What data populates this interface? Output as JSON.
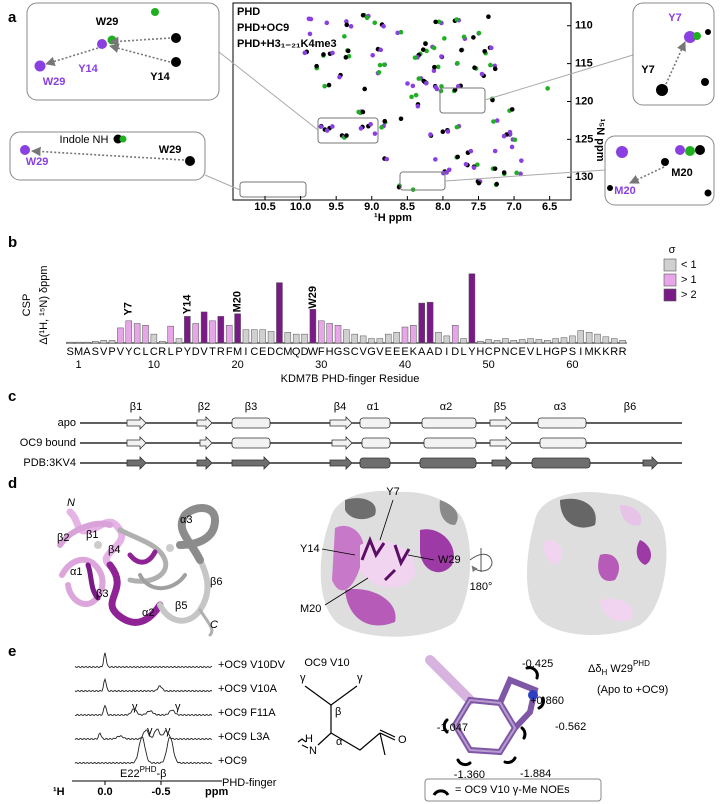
{
  "panel_a": {
    "type": "scatter",
    "label": "a",
    "legend": [
      {
        "name": "PHD",
        "color": "#000000"
      },
      {
        "name": "PHD+OC9",
        "color": "#8a3fe0"
      },
      {
        "name": "PHD+H3₁₋₂₁K4me3",
        "color": "#1fb01f"
      }
    ],
    "xlabel": "¹H ppm",
    "ylabel": "¹⁵N ppm",
    "xlim": [
      10.95,
      6.2
    ],
    "ylim": [
      107,
      133
    ],
    "xticks": [
      10.5,
      {
        "value": 10,
        "label": "10.0"
      },
      9.5,
      {
        "value": 9,
        "label": "9.0"
      },
      8.5,
      {
        "value": 8,
        "label": "8.0"
      },
      7.5,
      {
        "value": 7,
        "label": "7.0"
      },
      6.5
    ],
    "yticks": [
      110,
      115,
      120,
      125,
      130
    ],
    "insets": {
      "top_left": [
        "W29",
        "Y14",
        "W29",
        "Y14"
      ],
      "indole": [
        "Indole NH",
        "W29",
        "W29"
      ],
      "top_right": [
        "Y7",
        "Y7"
      ],
      "bottom_right": [
        "M20",
        "M20"
      ]
    }
  },
  "panel_b": {
    "type": "bar",
    "label": "b",
    "ylabel": [
      "CSP",
      "Δ(¹H, ¹⁵N) δppm"
    ],
    "xlabel": "KDM7B PHD-finger Residue",
    "categories": [
      "S",
      "M",
      "A",
      "S",
      "V",
      "P",
      "V",
      "Y",
      "C",
      "L",
      "C",
      "R",
      "L",
      "P",
      "Y",
      "D",
      "V",
      "T",
      "R",
      "F",
      "M",
      "I",
      "C",
      "E",
      "D",
      "C",
      "M",
      "Q",
      "D",
      "W",
      "F",
      "H",
      "G",
      "S",
      "C",
      "V",
      "G",
      "V",
      "E",
      "E",
      "E",
      "K",
      "A",
      "A",
      "D",
      "I",
      "D",
      "L",
      "Y",
      "H",
      "C",
      "P",
      "N",
      "C",
      "E",
      "V",
      "L",
      "H",
      "G",
      "P",
      "S",
      "I",
      "M",
      "K",
      "K",
      "R",
      "R"
    ],
    "xticks": [
      1,
      10,
      20,
      30,
      40,
      50,
      60
    ],
    "ylim": [
      0,
      0.8
    ],
    "legend_title": "σ",
    "series": [
      {
        "name": "< 1",
        "color": "#d0d0d0",
        "values": [
          0.01,
          0.01,
          0.01,
          0.02,
          0.03,
          0.03,
          null,
          null,
          null,
          null,
          0.1,
          0.02,
          null,
          0.05,
          null,
          null,
          null,
          null,
          null,
          null,
          null,
          0.15,
          0.15,
          0.15,
          0.13,
          null,
          0.12,
          0.1,
          0.1,
          null,
          null,
          null,
          null,
          0.15,
          0.1,
          0.08,
          0.05,
          0.05,
          0.1,
          0.12,
          null,
          null,
          null,
          null,
          0.12,
          0.08,
          null,
          0.05,
          null,
          0.02,
          0.04,
          0.03,
          0.05,
          0.03,
          0.04,
          0.05,
          0.04,
          0.03,
          0.05,
          0.06,
          0.08,
          0.14,
          0.12,
          0.1,
          0.07,
          0.05,
          0.03
        ]
      },
      {
        "name": "> 1",
        "color": "#e7a6e7",
        "values": [
          null,
          null,
          null,
          null,
          null,
          null,
          0.17,
          0.25,
          0.22,
          0.2,
          null,
          null,
          0.19,
          null,
          null,
          0.22,
          null,
          0.25,
          null,
          0.2,
          null,
          null,
          null,
          null,
          null,
          null,
          null,
          null,
          null,
          null,
          0.25,
          0.22,
          0.2,
          null,
          null,
          null,
          null,
          null,
          null,
          null,
          0.18,
          0.2,
          null,
          null,
          null,
          null,
          0.2,
          null,
          null,
          null,
          null,
          null,
          null,
          null,
          null,
          null,
          null,
          null,
          null,
          null,
          null,
          null,
          null,
          null,
          null,
          null,
          null
        ]
      },
      {
        "name": "> 2",
        "color": "#7a1a86",
        "values": [
          null,
          null,
          null,
          null,
          null,
          null,
          null,
          null,
          null,
          null,
          null,
          null,
          null,
          null,
          0.3,
          null,
          0.35,
          null,
          0.3,
          null,
          0.33,
          null,
          null,
          null,
          null,
          0.68,
          null,
          null,
          null,
          0.38,
          null,
          null,
          null,
          null,
          null,
          null,
          null,
          null,
          null,
          null,
          null,
          null,
          0.45,
          0.46,
          null,
          null,
          null,
          null,
          0.78,
          null,
          null,
          null,
          null,
          null,
          null,
          null,
          null,
          null,
          null,
          null,
          null,
          null,
          null,
          null,
          null,
          null,
          null
        ]
      }
    ],
    "annotations": [
      {
        "text": "Y7",
        "at": 7
      },
      {
        "text": "Y14",
        "at": 14
      },
      {
        "text": "M20",
        "at": 20
      },
      {
        "text": "W29",
        "at": 29
      }
    ]
  },
  "panel_c": {
    "label": "c",
    "elements": [
      "β1",
      "β2",
      "β3",
      "β4",
      "α1",
      "α2",
      "β5",
      "α3",
      "β6"
    ],
    "rows": [
      "apo",
      "OC9 bound",
      "PDB:3KV4"
    ]
  },
  "panel_d": {
    "label": "d",
    "ribbon_labels": [
      "N",
      "β2",
      "β1",
      "α3",
      "β4",
      "α1",
      "β3",
      "β6",
      "β5",
      "α2",
      "C"
    ],
    "surface_labels": [
      "Y7",
      "W29",
      "Y14",
      "M20"
    ],
    "rotation": "180°"
  },
  "panel_e": {
    "label": "e",
    "spectra": [
      "+OC9 V10DV",
      "+OC9 V10A",
      "+OC9 F11A",
      "+OC9 L3A",
      "+OC9"
    ],
    "gamma": "γ",
    "reference": "PHD-finger",
    "peak_label": [
      "E22",
      "PHD",
      "-β"
    ],
    "axis_nucleus": "¹H",
    "xticks": [
      {
        "value": 0,
        "label": "0.0"
      },
      -0.5
    ],
    "axis_unit": "ppm",
    "structure": {
      "title": "OC9 V10",
      "atoms": [
        "γ",
        "γ",
        "β",
        "α",
        "H",
        "N",
        "O"
      ]
    },
    "shifts": [
      "-0.425",
      "+0.860",
      "-1.047",
      "-0.562",
      "-1.360",
      "-1.884"
    ],
    "shift_title": [
      "Δδ",
      "H",
      " W29",
      "PHD"
    ],
    "shift_subtitle": "(Apo to +OC9)",
    "noe_legend": "= OC9 V10 γ-Me NOEs"
  }
}
